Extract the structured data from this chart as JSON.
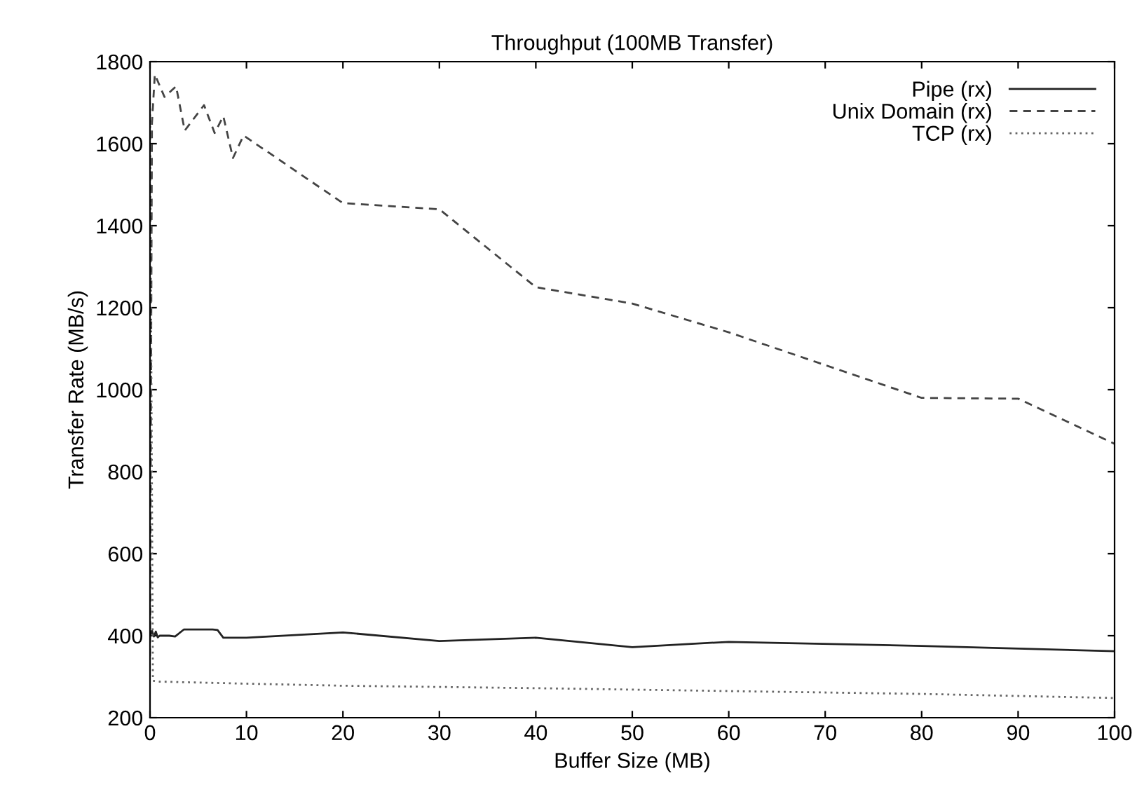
{
  "chart_data": {
    "type": "line",
    "title": "Throughput (100MB Transfer)",
    "xlabel": "Buffer Size (MB)",
    "ylabel": "Transfer Rate (MB/s)",
    "xlim": [
      0,
      100
    ],
    "ylim": [
      200,
      1800
    ],
    "xticks": [
      0,
      10,
      20,
      30,
      40,
      50,
      60,
      70,
      80,
      90,
      100
    ],
    "yticks": [
      200,
      400,
      600,
      800,
      1000,
      1200,
      1400,
      1600,
      1800
    ],
    "legend": "top right",
    "grid": false,
    "series": [
      {
        "name": "Pipe (rx)",
        "color": "#222222",
        "line_style": "solid",
        "x": [
          0,
          0.2,
          0.4,
          0.6,
          0.8,
          1,
          2,
          2.6,
          3.5,
          6.5,
          7,
          7.6,
          10,
          20,
          30,
          40,
          50,
          60,
          80,
          100
        ],
        "values": [
          400,
          412,
          398,
          410,
          396,
          400,
          400,
          398,
          415,
          415,
          414,
          395,
          395,
          408,
          387,
          395,
          372,
          385,
          375,
          362
        ]
      },
      {
        "name": "Unix Domain (rx)",
        "color": "#444444",
        "line_style": "dashed",
        "x": [
          0,
          0.2,
          0.5,
          1.5,
          2.7,
          3.6,
          5.6,
          6.7,
          7.6,
          8.6,
          9.7,
          20,
          30,
          40,
          50,
          60,
          70,
          80,
          90,
          100
        ],
        "values": [
          350,
          1650,
          1769,
          1714,
          1740,
          1632,
          1694,
          1626,
          1667,
          1565,
          1620,
          1455,
          1440,
          1250,
          1210,
          1140,
          1060,
          980,
          978,
          868
        ]
      },
      {
        "name": "TCP (rx)",
        "color": "#666666",
        "line_style": "dotted",
        "x": [
          0,
          0.3,
          1,
          10,
          20,
          40,
          60,
          80,
          100
        ],
        "values": [
          1700,
          290,
          288,
          283,
          278,
          272,
          265,
          258,
          248
        ]
      }
    ]
  }
}
